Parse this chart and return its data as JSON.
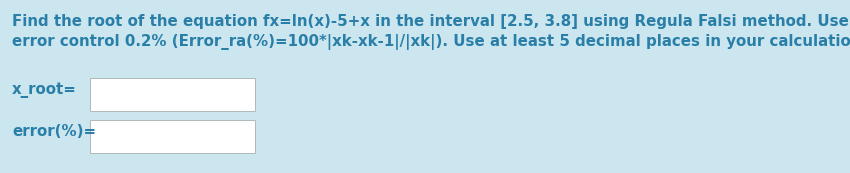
{
  "background_color": "#cce6f0",
  "text_color": "#2a7fa8",
  "title_line1": "Find the root of the equation fx=ln(x)-5+x in the interval [2.5, 3.8] using Regula Falsi method. Use percent relative",
  "title_line2": "error control 0.2% (Error_ra(%)=100*|xk-xk-1|/|xk|). Use at least 5 decimal places in your calculations.",
  "label1": "x_root=",
  "label2": "error(%)=",
  "box_facecolor": "#ffffff",
  "box_edgecolor": "#b0b8bc",
  "text_fontsize": 10.8,
  "label_fontsize": 10.8,
  "figsize": [
    8.5,
    1.73
  ],
  "dpi": 100
}
